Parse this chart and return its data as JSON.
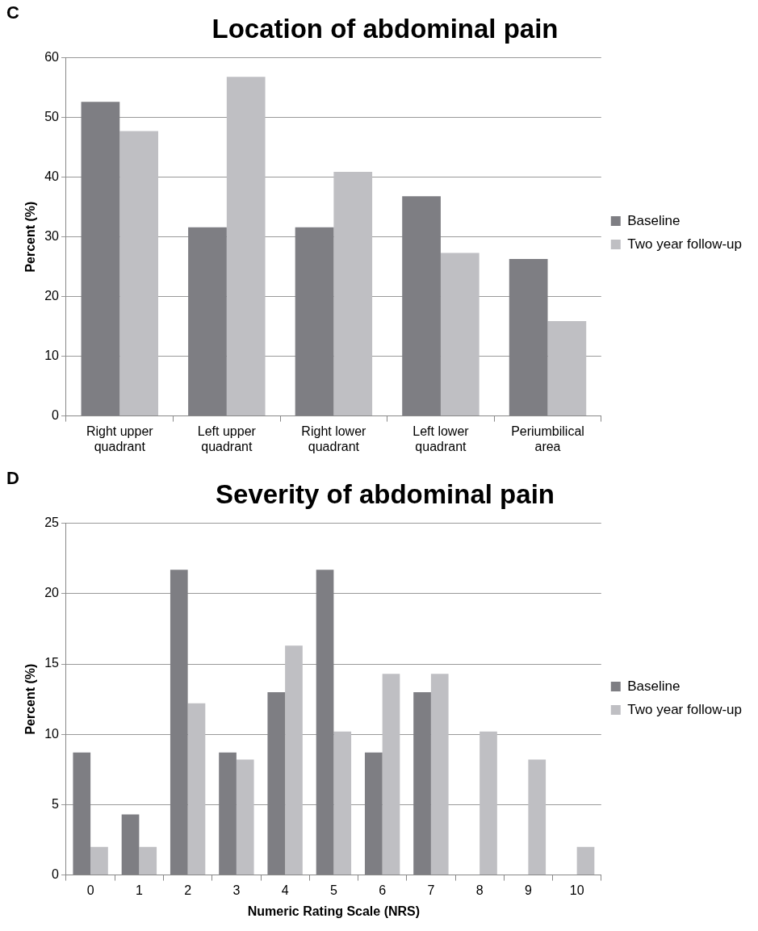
{
  "chart_data": [
    {
      "type": "bar",
      "title": "Location of abdominal pain",
      "ylabel": "Percent (%)",
      "annotations": [
        "C"
      ],
      "categories": [
        "Right upper quadrant",
        "Left upper quadrant",
        "Right lower quadrant",
        "Left lower quadrant",
        "Periumbilical area"
      ],
      "series": [
        {
          "name": "Baseline",
          "color": "#7e7e83",
          "values": [
            52.6,
            31.6,
            31.6,
            36.8,
            26.3
          ]
        },
        {
          "name": "Two year follow-up",
          "color": "#bfbfc3",
          "values": [
            47.7,
            56.8,
            40.9,
            27.3,
            15.9
          ]
        }
      ],
      "ylim": [
        0,
        60
      ],
      "yticks": [
        0,
        10,
        20,
        30,
        40,
        50,
        60
      ],
      "grid": "y",
      "legend": "right"
    },
    {
      "type": "bar",
      "title": "Severity of abdominal pain",
      "ylabel": "Percent (%)",
      "xlabel": "Numeric Rating Scale (NRS)",
      "annotations": [
        "D"
      ],
      "categories": [
        "0",
        "1",
        "2",
        "3",
        "4",
        "5",
        "6",
        "7",
        "8",
        "9",
        "10"
      ],
      "series": [
        {
          "name": "Baseline",
          "color": "#7e7e83",
          "values": [
            8.7,
            4.3,
            21.7,
            8.7,
            13.0,
            21.7,
            8.7,
            13.0,
            0,
            0,
            0
          ]
        },
        {
          "name": "Two year follow-up",
          "color": "#bfbfc3",
          "values": [
            2.0,
            2.0,
            12.2,
            8.2,
            16.3,
            10.2,
            14.3,
            14.3,
            10.2,
            8.2,
            2.0
          ]
        }
      ],
      "ylim": [
        0,
        25
      ],
      "yticks": [
        0,
        5,
        10,
        15,
        20,
        25
      ],
      "grid": "y",
      "legend": "right"
    }
  ]
}
